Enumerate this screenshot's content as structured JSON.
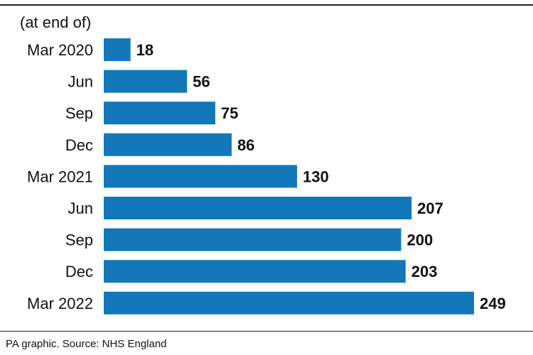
{
  "header": {
    "subtitle": "(at end of)"
  },
  "footer": {
    "source": "PA graphic. Source: NHS England"
  },
  "colors": {
    "bar": "#1278b9",
    "text": "#111111",
    "rule": "#222222"
  },
  "chart_data": {
    "type": "bar",
    "orientation": "horizontal",
    "categories": [
      "Mar 2020",
      "Jun",
      "Sep",
      "Dec",
      "Mar 2021",
      "Jun",
      "Sep",
      "Dec",
      "Mar 2022"
    ],
    "values": [
      18,
      56,
      75,
      86,
      130,
      207,
      200,
      203,
      249
    ],
    "title": "",
    "subtitle": "(at end of)",
    "xlabel": "",
    "ylabel": "",
    "xlim": [
      0,
      249
    ],
    "grid": false,
    "legend": "none",
    "data_labels": true
  }
}
